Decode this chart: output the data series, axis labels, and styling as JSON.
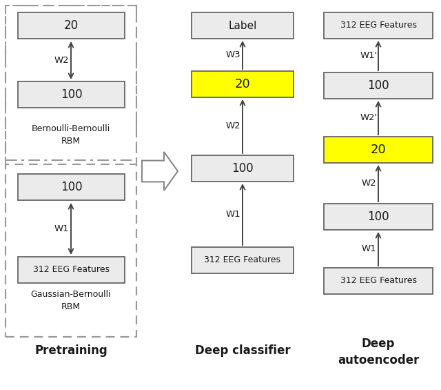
{
  "bg_color": "#ffffff",
  "box_color_white": "#ebebeb",
  "box_color_yellow": "#ffff00",
  "box_border_color": "#666666",
  "text_color": "#1a1a1a",
  "arrow_color": "#444444",
  "dashed_border_color": "#888888",
  "pretraining_label": "Pretraining",
  "deep_classifier_label": "Deep classifier",
  "deep_autoencoder_label": "Deep\nautoencoder"
}
